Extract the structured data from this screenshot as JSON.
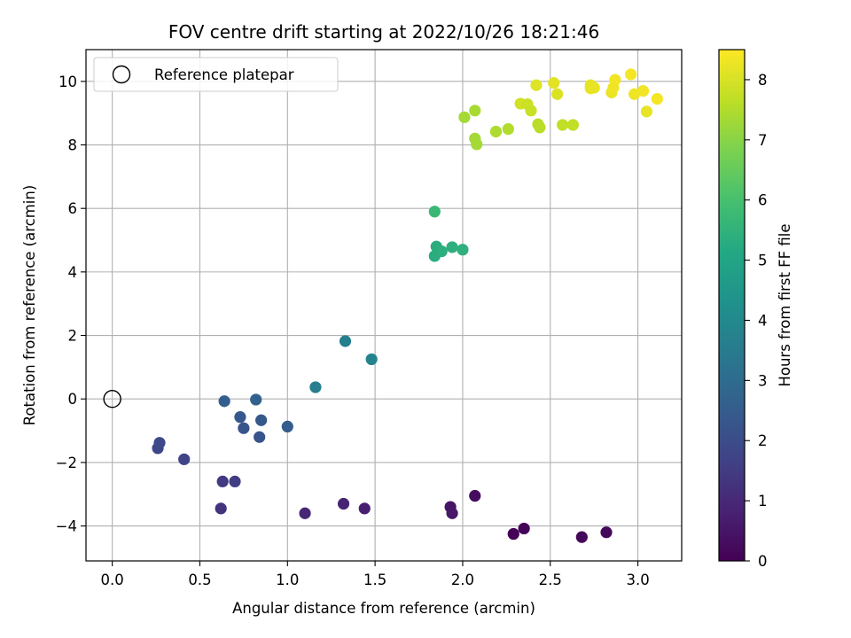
{
  "chart_data": {
    "type": "scatter",
    "title": "FOV centre drift starting at 2022/10/26 18:21:46",
    "xlabel": "Angular distance from reference (arcmin)",
    "ylabel": "Rotation from reference (arcmin)",
    "xlim": [
      -0.15,
      3.25
    ],
    "ylim": [
      -5.1,
      11.0
    ],
    "xticks": [
      0.0,
      0.5,
      1.0,
      1.5,
      2.0,
      2.5,
      3.0
    ],
    "xtick_labels": [
      "0.0",
      "0.5",
      "1.0",
      "1.5",
      "2.0",
      "2.5",
      "3.0"
    ],
    "yticks": [
      -4,
      -2,
      0,
      2,
      4,
      6,
      8,
      10
    ],
    "ytick_labels": [
      "−4",
      "−2",
      "0",
      "2",
      "4",
      "6",
      "8",
      "10"
    ],
    "grid": true,
    "legend": {
      "placement": "top-left",
      "entries": [
        "Reference platepar"
      ]
    },
    "reference_point": {
      "x": 0.0,
      "y": 0.0
    },
    "colorbar": {
      "label": "Hours from first FF file",
      "range": [
        0,
        8.5
      ],
      "ticks": [
        0,
        1,
        2,
        3,
        4,
        5,
        6,
        7,
        8
      ],
      "tick_labels": [
        "0",
        "1",
        "2",
        "3",
        "4",
        "5",
        "6",
        "7",
        "8"
      ],
      "colormap": "viridis"
    },
    "points": [
      {
        "x": 2.29,
        "y": -4.25,
        "c": 0.05
      },
      {
        "x": 2.35,
        "y": -4.08,
        "c": 0.1
      },
      {
        "x": 2.68,
        "y": -4.35,
        "c": 0.15
      },
      {
        "x": 2.82,
        "y": -4.2,
        "c": 0.2
      },
      {
        "x": 2.07,
        "y": -3.05,
        "c": 0.3
      },
      {
        "x": 1.93,
        "y": -3.4,
        "c": 0.45
      },
      {
        "x": 1.94,
        "y": -3.6,
        "c": 0.55
      },
      {
        "x": 1.44,
        "y": -3.45,
        "c": 0.75
      },
      {
        "x": 1.32,
        "y": -3.3,
        "c": 0.85
      },
      {
        "x": 1.1,
        "y": -3.6,
        "c": 0.95
      },
      {
        "x": 0.62,
        "y": -3.45,
        "c": 1.3
      },
      {
        "x": 0.63,
        "y": -2.6,
        "c": 1.5
      },
      {
        "x": 0.7,
        "y": -2.6,
        "c": 1.55
      },
      {
        "x": 0.41,
        "y": -1.9,
        "c": 1.75
      },
      {
        "x": 0.26,
        "y": -1.55,
        "c": 1.85
      },
      {
        "x": 0.27,
        "y": -1.38,
        "c": 1.9
      },
      {
        "x": 0.75,
        "y": -0.92,
        "c": 2.2
      },
      {
        "x": 0.84,
        "y": -1.2,
        "c": 2.25
      },
      {
        "x": 0.73,
        "y": -0.57,
        "c": 2.35
      },
      {
        "x": 0.85,
        "y": -0.67,
        "c": 2.4
      },
      {
        "x": 1.0,
        "y": -0.87,
        "c": 2.5
      },
      {
        "x": 0.64,
        "y": -0.07,
        "c": 2.55
      },
      {
        "x": 0.82,
        "y": -0.02,
        "c": 2.65
      },
      {
        "x": 1.16,
        "y": 0.37,
        "c": 3.6
      },
      {
        "x": 1.33,
        "y": 1.82,
        "c": 3.65
      },
      {
        "x": 1.48,
        "y": 1.25,
        "c": 3.8
      },
      {
        "x": 1.84,
        "y": 5.9,
        "c": 5.7
      },
      {
        "x": 1.85,
        "y": 4.8,
        "c": 5.3
      },
      {
        "x": 1.84,
        "y": 4.5,
        "c": 5.3
      },
      {
        "x": 1.88,
        "y": 4.65,
        "c": 5.35
      },
      {
        "x": 1.94,
        "y": 4.78,
        "c": 5.4
      },
      {
        "x": 2.0,
        "y": 4.7,
        "c": 5.45
      },
      {
        "x": 2.01,
        "y": 8.87,
        "c": 7.35
      },
      {
        "x": 2.07,
        "y": 9.08,
        "c": 7.4
      },
      {
        "x": 2.07,
        "y": 8.2,
        "c": 7.35
      },
      {
        "x": 2.08,
        "y": 8.02,
        "c": 7.35
      },
      {
        "x": 2.19,
        "y": 8.42,
        "c": 7.45
      },
      {
        "x": 2.26,
        "y": 8.5,
        "c": 7.5
      },
      {
        "x": 2.33,
        "y": 9.3,
        "c": 7.9
      },
      {
        "x": 2.37,
        "y": 9.28,
        "c": 7.85
      },
      {
        "x": 2.39,
        "y": 9.08,
        "c": 7.8
      },
      {
        "x": 2.43,
        "y": 8.65,
        "c": 7.6
      },
      {
        "x": 2.44,
        "y": 8.55,
        "c": 7.6
      },
      {
        "x": 2.42,
        "y": 9.88,
        "c": 8.1
      },
      {
        "x": 2.52,
        "y": 9.95,
        "c": 8.15
      },
      {
        "x": 2.54,
        "y": 9.6,
        "c": 8.05
      },
      {
        "x": 2.57,
        "y": 8.63,
        "c": 7.7
      },
      {
        "x": 2.63,
        "y": 8.63,
        "c": 7.7
      },
      {
        "x": 2.73,
        "y": 9.88,
        "c": 8.2
      },
      {
        "x": 2.73,
        "y": 9.78,
        "c": 8.2
      },
      {
        "x": 2.75,
        "y": 9.8,
        "c": 8.2
      },
      {
        "x": 2.85,
        "y": 9.65,
        "c": 8.25
      },
      {
        "x": 2.86,
        "y": 9.8,
        "c": 8.3
      },
      {
        "x": 2.87,
        "y": 10.05,
        "c": 8.35
      },
      {
        "x": 2.96,
        "y": 10.22,
        "c": 8.4
      },
      {
        "x": 2.98,
        "y": 9.6,
        "c": 8.3
      },
      {
        "x": 3.03,
        "y": 9.7,
        "c": 8.35
      },
      {
        "x": 3.05,
        "y": 9.05,
        "c": 8.2
      },
      {
        "x": 3.11,
        "y": 9.45,
        "c": 8.4
      }
    ]
  }
}
